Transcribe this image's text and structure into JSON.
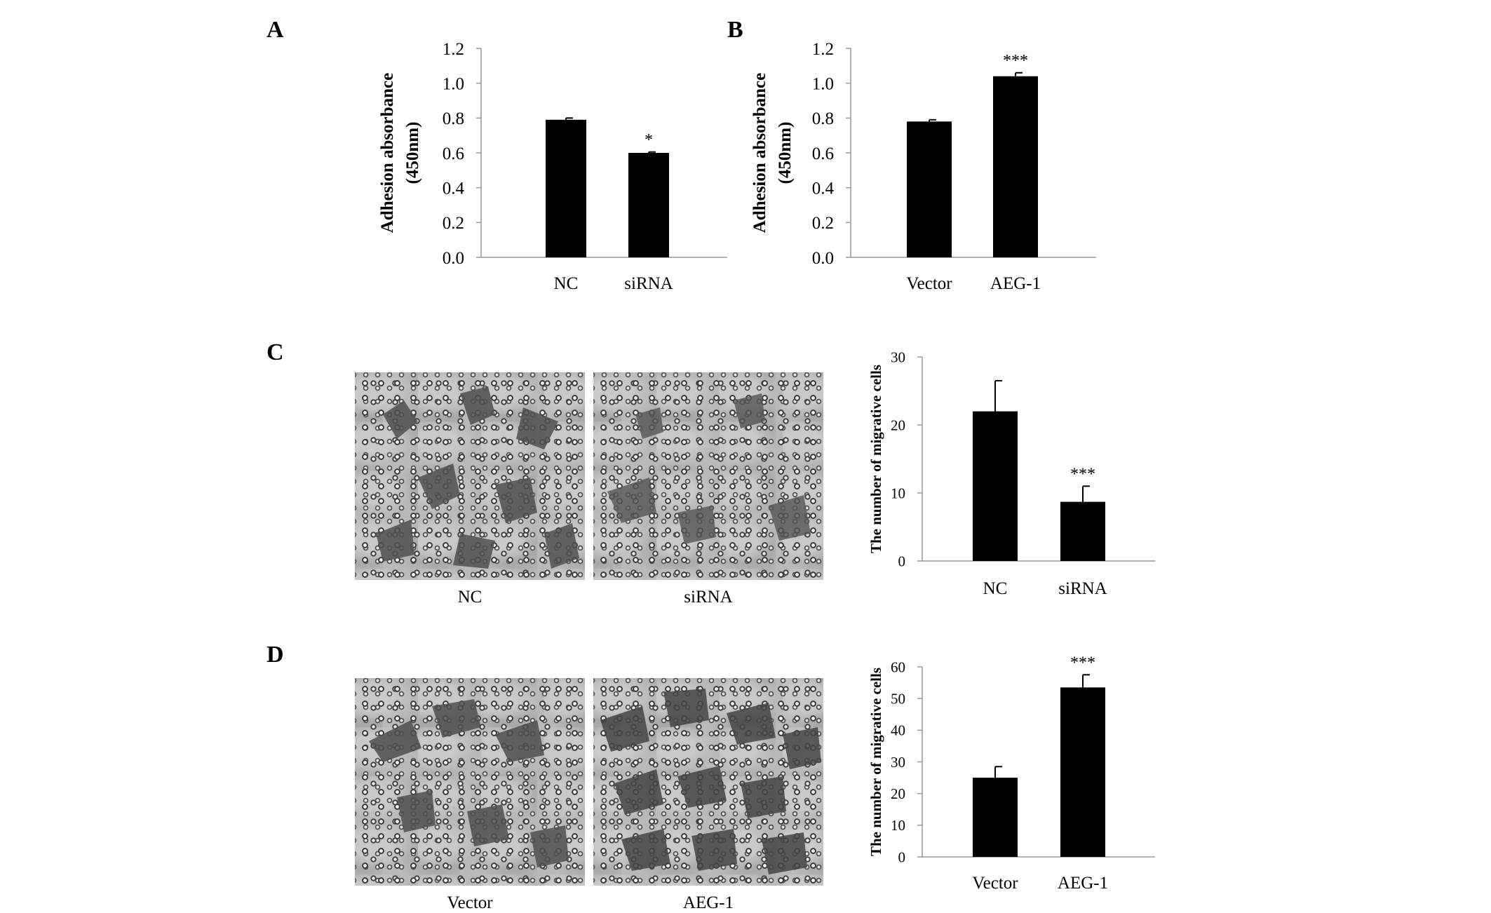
{
  "panels": {
    "a": {
      "letter": "A"
    },
    "b": {
      "letter": "B"
    },
    "c": {
      "letter": "C",
      "image_labels": [
        "NC",
        "siRNA"
      ]
    },
    "d": {
      "letter": "D",
      "image_labels": [
        "Vector",
        "AEG-1"
      ]
    }
  },
  "chart_data": [
    {
      "id": "chartA",
      "type": "bar",
      "categories": [
        "NC",
        "siRNA"
      ],
      "values": [
        0.79,
        0.6
      ],
      "errors": [
        0.01,
        0.005
      ],
      "significance": [
        "",
        "*"
      ],
      "ylabel_lines": [
        "Adhesion absorbance",
        "(450nm)"
      ],
      "ylim": [
        0,
        1.2
      ],
      "yticks": [
        "0.0",
        "0.2",
        "0.4",
        "0.6",
        "0.8",
        "1.0",
        "1.2"
      ],
      "grid": false,
      "colors": {
        "bar": "#000000"
      }
    },
    {
      "id": "chartB",
      "type": "bar",
      "categories": [
        "Vector",
        "AEG-1"
      ],
      "values": [
        0.78,
        1.04
      ],
      "errors": [
        0.01,
        0.02
      ],
      "significance": [
        "",
        "***"
      ],
      "ylabel_lines": [
        "Adhesion absorbance",
        "(450nm)"
      ],
      "ylim": [
        0,
        1.2
      ],
      "yticks": [
        "0.0",
        "0.2",
        "0.4",
        "0.6",
        "0.8",
        "1.0",
        "1.2"
      ],
      "grid": false,
      "colors": {
        "bar": "#000000"
      }
    },
    {
      "id": "chartC",
      "type": "bar",
      "categories": [
        "NC",
        "siRNA"
      ],
      "values": [
        22,
        8.7
      ],
      "errors": [
        4.5,
        2.3
      ],
      "significance": [
        "",
        "***"
      ],
      "ylabel_lines": [
        "The number of migrative cells"
      ],
      "ylim": [
        0,
        30
      ],
      "yticks": [
        "0",
        "10",
        "20",
        "30"
      ],
      "grid": false,
      "colors": {
        "bar": "#000000"
      }
    },
    {
      "id": "chartD",
      "type": "bar",
      "categories": [
        "Vector",
        "AEG-1"
      ],
      "values": [
        25,
        53.5
      ],
      "errors": [
        3.5,
        4
      ],
      "significance": [
        "",
        "***"
      ],
      "ylabel_lines": [
        "The number of migrative cells"
      ],
      "ylim": [
        0,
        60
      ],
      "yticks": [
        "0",
        "10",
        "20",
        "30",
        "40",
        "50",
        "60"
      ],
      "grid": false,
      "colors": {
        "bar": "#000000"
      }
    }
  ]
}
